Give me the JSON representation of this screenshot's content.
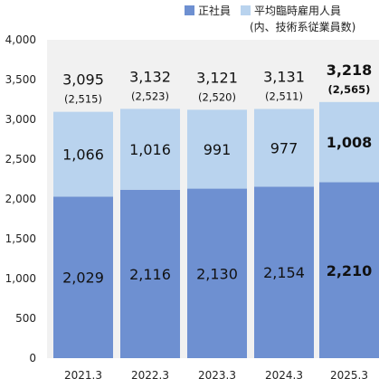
{
  "chart_data": {
    "type": "bar",
    "stacked": true,
    "categories": [
      "2021.3",
      "2022.3",
      "2023.3",
      "2024.3",
      "2025.3"
    ],
    "series": [
      {
        "name": "正社員",
        "values": [
          2029,
          2116,
          2130,
          2154,
          2210
        ],
        "color": "#6E90D1"
      },
      {
        "name": "平均臨時雇用人員",
        "values": [
          1066,
          1016,
          991,
          977,
          1008
        ],
        "color": "#B9D3EE"
      }
    ],
    "segment_labels": {
      "正社員": [
        "2,029",
        "2,116",
        "2,130",
        "2,154",
        "2,210"
      ],
      "平均臨時雇用人員": [
        "1,066",
        "1,016",
        "991",
        "977",
        "1,008"
      ]
    },
    "totals": [
      3095,
      3132,
      3121,
      3131,
      3218
    ],
    "total_labels": [
      "3,095",
      "3,132",
      "3,121",
      "3,131",
      "3,218"
    ],
    "paren_values": [
      2515,
      2523,
      2520,
      2511,
      2565
    ],
    "paren_labels": [
      "(2,515)",
      "(2,523)",
      "(2,520)",
      "(2,511)",
      "(2,565)"
    ],
    "highlight_index": 4,
    "legend_note": "(内、技術系従業員数)",
    "legend_position": "top-right",
    "ylim": [
      0,
      4000
    ],
    "yticks": [
      0,
      500,
      1000,
      1500,
      2000,
      2500,
      3000,
      3500,
      4000
    ],
    "ytick_labels": [
      "0",
      "500",
      "1,000",
      "1,500",
      "2,000",
      "2,500",
      "3,000",
      "3,500",
      "4,000"
    ],
    "grid": false,
    "plot_background": "#F1F1F1"
  }
}
